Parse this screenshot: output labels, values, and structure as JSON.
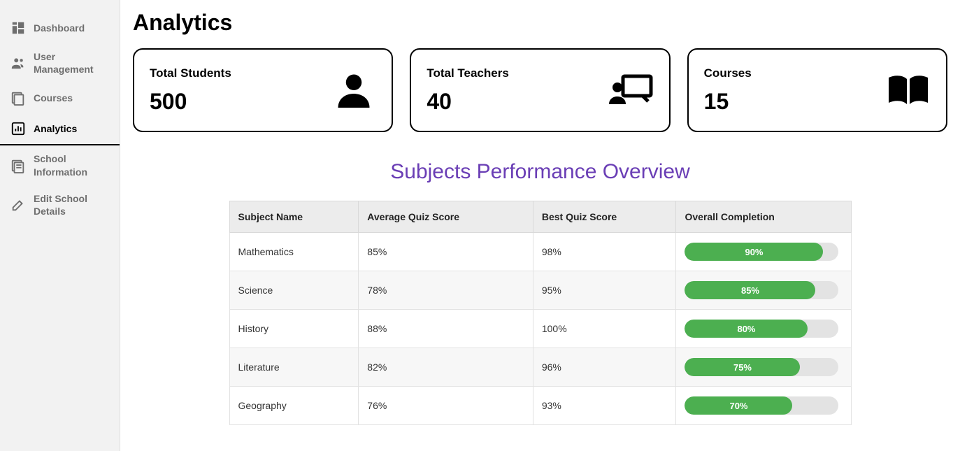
{
  "sidebar": {
    "items": [
      {
        "label": "Dashboard",
        "active": false
      },
      {
        "label": "User Management",
        "active": false
      },
      {
        "label": "Courses",
        "active": false
      },
      {
        "label": "Analytics",
        "active": true
      },
      {
        "label": "School Information",
        "active": false
      },
      {
        "label": "Edit School Details",
        "active": false
      }
    ]
  },
  "page": {
    "title": "Analytics"
  },
  "stats": {
    "students": {
      "label": "Total Students",
      "value": "500"
    },
    "teachers": {
      "label": "Total Teachers",
      "value": "40"
    },
    "courses": {
      "label": "Courses",
      "value": "15"
    }
  },
  "performance_table": {
    "title": "Subjects Performance Overview",
    "title_color": "#6a3eb5",
    "columns": [
      "Subject Name",
      "Average Quiz Score",
      "Best Quiz Score",
      "Overall Completion"
    ],
    "progress_bar": {
      "fill_color": "#4caf50",
      "track_color": "#e3e3e3",
      "text_color": "#ffffff"
    },
    "rows": [
      {
        "subject": "Mathematics",
        "avg": "85%",
        "best": "98%",
        "completion_pct": 90,
        "completion_label": "90%"
      },
      {
        "subject": "Science",
        "avg": "78%",
        "best": "95%",
        "completion_pct": 85,
        "completion_label": "85%"
      },
      {
        "subject": "History",
        "avg": "88%",
        "best": "100%",
        "completion_pct": 80,
        "completion_label": "80%"
      },
      {
        "subject": "Literature",
        "avg": "82%",
        "best": "96%",
        "completion_pct": 75,
        "completion_label": "75%"
      },
      {
        "subject": "Geography",
        "avg": "76%",
        "best": "93%",
        "completion_pct": 70,
        "completion_label": "70%"
      }
    ]
  }
}
